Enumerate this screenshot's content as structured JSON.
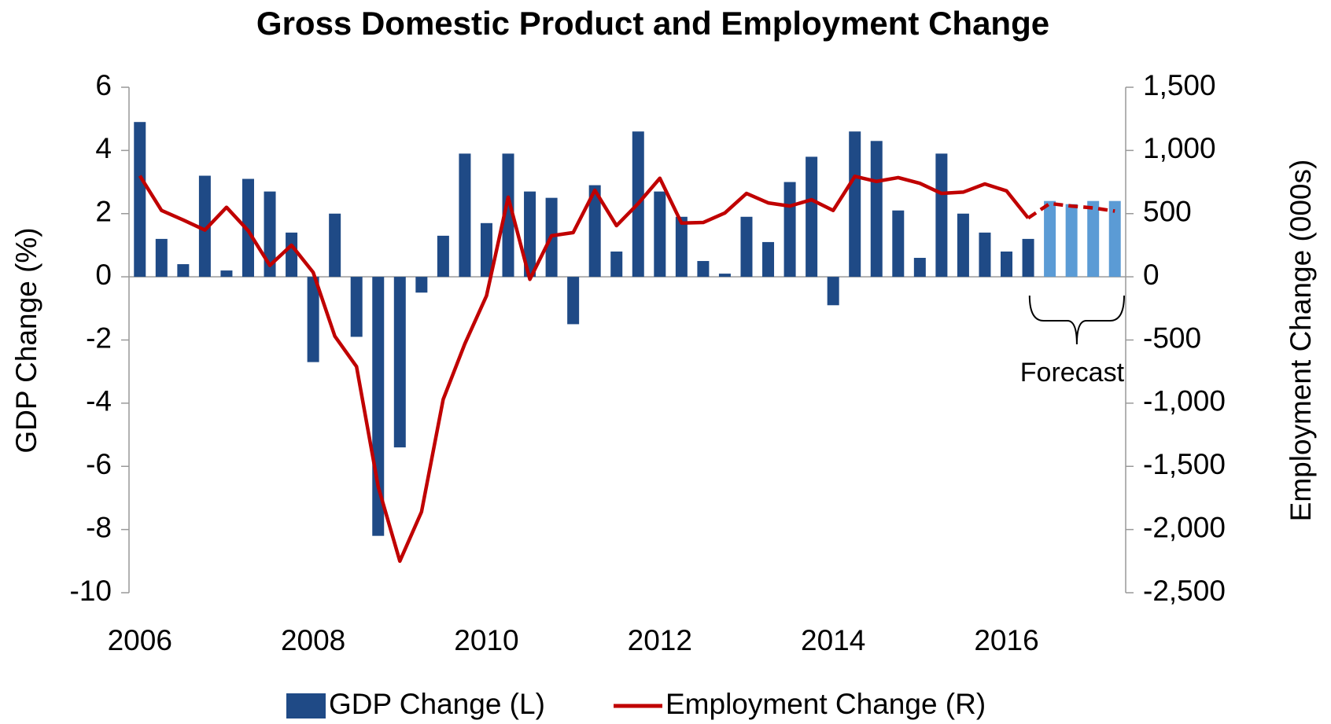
{
  "chart_data": {
    "type": "bar-line",
    "title": "Gross Domestic Product and Employment Change",
    "ylabel": "GDP Change (%)",
    "y2label": "Employment Change (000s)",
    "x": [
      2006,
      2006.25,
      2006.5,
      2006.75,
      2007,
      2007.25,
      2007.5,
      2007.75,
      2008,
      2008.25,
      2008.5,
      2008.75,
      2009,
      2009.25,
      2009.5,
      2009.75,
      2010,
      2010.25,
      2010.5,
      2010.75,
      2011,
      2011.25,
      2011.5,
      2011.75,
      2012,
      2012.25,
      2012.5,
      2012.75,
      2013,
      2013.25,
      2013.5,
      2013.75,
      2014,
      2014.25,
      2014.5,
      2014.75,
      2015,
      2015.25,
      2015.5,
      2015.75,
      2016,
      2016.25,
      2016.5,
      2016.75,
      2017,
      2017.25
    ],
    "series": [
      {
        "name": "GDP Change (L)",
        "type": "bar",
        "axis": "y",
        "color": "#1f4a86",
        "forecast_color": "#5b9bd5",
        "values": [
          4.9,
          1.2,
          0.4,
          3.2,
          0.2,
          3.1,
          2.7,
          1.4,
          -2.7,
          2.0,
          -1.9,
          -8.2,
          -5.4,
          -0.5,
          1.3,
          3.9,
          1.7,
          3.9,
          2.7,
          2.5,
          -1.5,
          2.9,
          0.8,
          4.6,
          2.7,
          1.9,
          0.5,
          0.1,
          1.9,
          1.1,
          3.0,
          3.8,
          -0.9,
          4.6,
          4.3,
          2.1,
          0.6,
          3.9,
          2.0,
          1.4,
          0.8,
          1.2,
          2.4,
          2.3,
          2.4,
          2.4
        ]
      },
      {
        "name": "Employment Change (R)",
        "type": "line",
        "axis": "y2",
        "color": "#c00000",
        "values": [
          800,
          525,
          450,
          370,
          550,
          365,
          90,
          250,
          35,
          -470,
          -710,
          -1660,
          -2250,
          -1860,
          -970,
          -530,
          -150,
          630,
          -20,
          325,
          350,
          685,
          405,
          580,
          780,
          425,
          430,
          505,
          660,
          585,
          560,
          610,
          525,
          795,
          755,
          785,
          740,
          660,
          670,
          735,
          680,
          465,
          580,
          560,
          545,
          520
        ]
      }
    ],
    "forecast": {
      "label": "Forecast",
      "start": 2016.5
    },
    "xlim": [
      2005.875,
      2017.375
    ],
    "xticks": [
      2006,
      2008,
      2010,
      2012,
      2014,
      2016
    ],
    "ylim": [
      -10,
      6
    ],
    "yticks": [
      -10,
      -8,
      -6,
      -4,
      -2,
      0,
      2,
      4,
      6
    ],
    "y2lim": [
      -2500,
      1500
    ],
    "y2ticks": [
      {
        "value": -2500,
        "label": "-2,500"
      },
      {
        "value": -2000,
        "label": "-2,000"
      },
      {
        "value": -1500,
        "label": "-1,500"
      },
      {
        "value": -1000,
        "label": "-1,000"
      },
      -500,
      0,
      500,
      {
        "value": 1000,
        "label": "1,000"
      },
      {
        "value": 1500,
        "label": "1,500"
      }
    ],
    "legend": "bottom"
  }
}
